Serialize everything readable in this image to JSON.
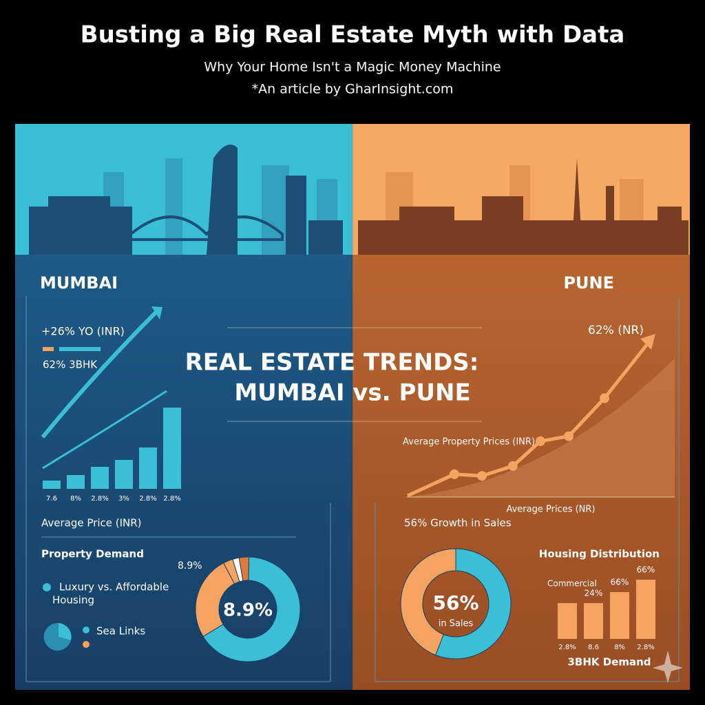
{
  "header": {
    "title": "Busting a Big Real Estate Myth with Data",
    "subtitle": "Why Your Home Isn't a Magic Money Machine",
    "byline": "*An article by GharInsight.com"
  },
  "center_title": [
    "REAL ESTATE TRENDS:",
    "MUMBAI vs. PUNE"
  ],
  "mumbai": {
    "label": "MUMBAI",
    "growth": "+26% YO (INR)",
    "legend": "62% 3BHK",
    "bars": {
      "values": [
        12,
        20,
        32,
        42,
        60,
        118
      ],
      "ylim": [
        0,
        120
      ],
      "labels": [
        "7.6",
        "8%",
        "2.8%",
        "3%",
        "2.8%",
        "2.8%"
      ],
      "color": "#3bbfd6"
    },
    "axis_label": "Average Price (INR)",
    "demand_title": "Property Demand",
    "legend_items": [
      "Luxury vs. Affordable",
      "Housing",
      "Sea Links"
    ],
    "donut": {
      "center": "8.9%",
      "callout": "8.9%",
      "values": [
        66,
        26,
        3,
        2,
        3
      ],
      "colors": [
        "#3bbfd6",
        "#f4a460",
        "#f4a460",
        "#ffffff",
        "#e07a3a"
      ]
    }
  },
  "pune": {
    "label": "PUNE",
    "growth": "62% (NR)",
    "line": {
      "values": [
        13,
        12,
        18,
        33,
        36,
        59
      ],
      "ylim": [
        0,
        100
      ],
      "color": "#f4a460"
    },
    "line_title": "Average Property Prices (INR)",
    "axis_label": "Average Prices (NR)",
    "sales": "56% Growth in Sales",
    "donut": {
      "center": "56%",
      "sub": "in Sales",
      "values": [
        56,
        44
      ],
      "colors": [
        "#3bbfd6",
        "#f4a460"
      ]
    },
    "dist_title": "Housing Distribution",
    "dist_note": "Commercial",
    "bars": {
      "values": [
        52,
        52,
        68,
        86
      ],
      "ylim": [
        0,
        100
      ],
      "top_labels": [
        "24%",
        "66%",
        "66%"
      ],
      "labels": [
        "2.8%",
        "8.6",
        "8%",
        "2.8%"
      ],
      "color": "#f4a460"
    },
    "bars_title": "3BHK Demand"
  }
}
